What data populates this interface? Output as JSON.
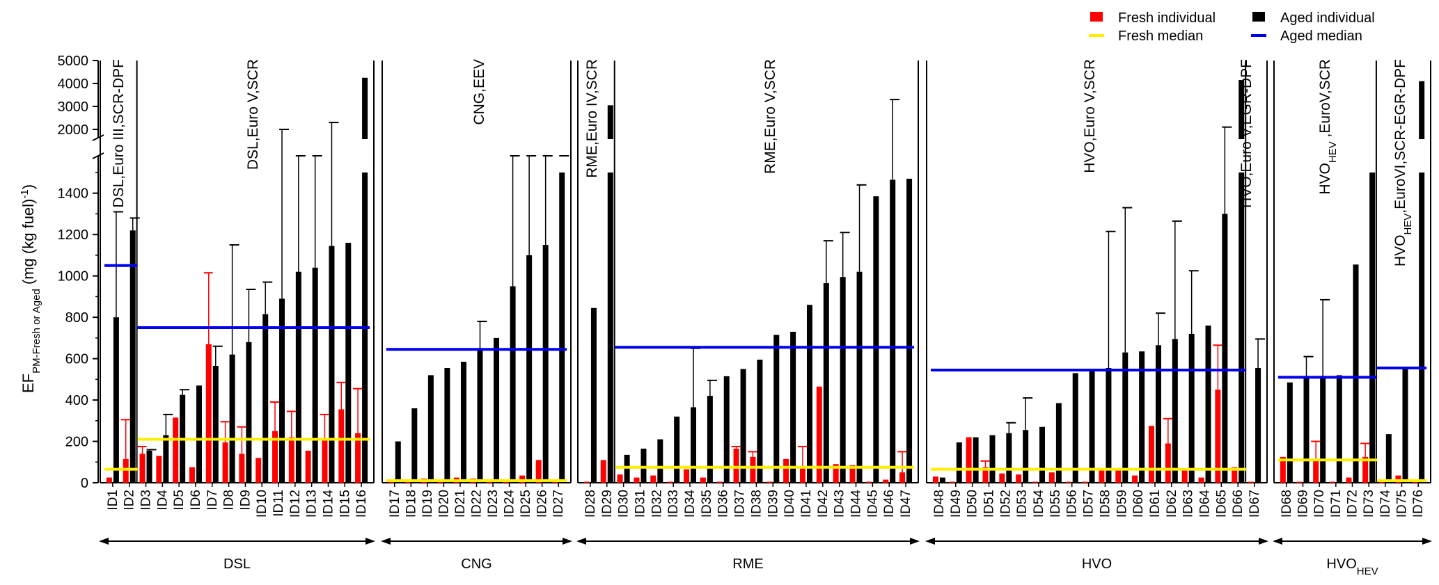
{
  "chart_data": {
    "type": "bar",
    "ylabel_main": "EF",
    "ylabel_sub": "PM-Fresh or Aged",
    "ylabel_unit": " (mg (kg fuel)",
    "ylabel_exp": "-1",
    "ylabel_close": ")",
    "y_axis": {
      "lower": {
        "min": 0,
        "max": 1500,
        "ticks": [
          0,
          200,
          400,
          600,
          800,
          1000,
          1200,
          1400
        ]
      },
      "upper": {
        "min": 2000,
        "max": 5000,
        "ticks": [
          2000,
          3000,
          4000,
          5000
        ]
      },
      "break": "axis break between 1500 and 1700"
    },
    "legend": [
      {
        "name": "Fresh individual",
        "kind": "bar",
        "color": "#ff0000"
      },
      {
        "name": "Aged individual",
        "kind": "bar",
        "color": "#000000"
      },
      {
        "name": "Fresh median",
        "kind": "line",
        "color": "#ffee00"
      },
      {
        "name": "Aged median",
        "kind": "line",
        "color": "#0000ee"
      }
    ],
    "groups": [
      {
        "name": "DSL",
        "sub": "",
        "ids": [
          1,
          16
        ]
      },
      {
        "name": "CNG",
        "sub": "",
        "ids": [
          17,
          27
        ]
      },
      {
        "name": "RME",
        "sub": "",
        "ids": [
          28,
          47
        ]
      },
      {
        "name": "HVO",
        "sub": "",
        "ids": [
          48,
          67
        ]
      },
      {
        "name": "HVO",
        "sub": "HEV",
        "ids": [
          68,
          76
        ]
      }
    ],
    "subgroups": [
      {
        "label": "DSL,Euro III,SCR-DPF",
        "ids": [
          1,
          2
        ],
        "aged_median": 1050,
        "fresh_median": 65
      },
      {
        "label": "DSL,Euro V,SCR",
        "ids": [
          3,
          16
        ],
        "aged_median": 750,
        "fresh_median": 210
      },
      {
        "label": "CNG,EEV",
        "ids": [
          17,
          27
        ],
        "aged_median": 645,
        "fresh_median": 10
      },
      {
        "label": "RME,Euro IV,SCR",
        "ids": [
          28,
          29
        ],
        "aged_median": null,
        "fresh_median": null
      },
      {
        "label": "RME,Euro V,SCR",
        "ids": [
          30,
          47
        ],
        "aged_median": 655,
        "fresh_median": 75
      },
      {
        "label": "HVO,Euro V,SCR",
        "ids": [
          48,
          66
        ],
        "aged_median": 545,
        "fresh_median": 65
      },
      {
        "label": "HVO,Euro V,EGR-DPF",
        "ids": [
          67,
          67
        ],
        "aged_median": null,
        "fresh_median": null
      },
      {
        "label": "HVO",
        "label_sub": "HEV",
        "label_rest": " ,EuroV,SCR",
        "ids": [
          68,
          73
        ],
        "aged_median": 510,
        "fresh_median": 110
      },
      {
        "label": "HVO",
        "label_sub": "HEV",
        "label_rest": ",EuroVI,SCR-EGR-DPF",
        "ids": [
          74,
          76
        ],
        "aged_median": 555,
        "fresh_median": 10
      }
    ],
    "bars": [
      {
        "id": "ID1",
        "fresh": 25,
        "aged": 800,
        "err_aged": 1310
      },
      {
        "id": "ID2",
        "fresh": 115,
        "aged": 1220,
        "err_fresh": 305,
        "err_aged": 1280
      },
      {
        "id": "ID3",
        "fresh": 140,
        "aged": 155,
        "err_fresh": 175,
        "err_aged": 160
      },
      {
        "id": "ID4",
        "fresh": 130,
        "aged": 230,
        "err_aged": 330
      },
      {
        "id": "ID5",
        "fresh": 315,
        "aged": 425,
        "err_aged": 450
      },
      {
        "id": "ID6",
        "fresh": 75,
        "aged": 470
      },
      {
        "id": "ID7",
        "fresh": 670,
        "aged": 565,
        "err_fresh": 1015,
        "err_aged": 660
      },
      {
        "id": "ID8",
        "fresh": 195,
        "aged": 620,
        "err_fresh": 295,
        "err_aged": 1150
      },
      {
        "id": "ID9",
        "fresh": 140,
        "aged": 680,
        "err_fresh": 270,
        "err_aged": 935
      },
      {
        "id": "ID10",
        "fresh": 120,
        "aged": 815,
        "err_aged": 970
      },
      {
        "id": "ID11",
        "fresh": 250,
        "aged": 890,
        "err_fresh": 390,
        "err_aged": 2000
      },
      {
        "id": "ID12",
        "fresh": 220,
        "aged": 1020,
        "err_fresh": 345,
        "err_aged": 1700
      },
      {
        "id": "ID13",
        "fresh": 155,
        "aged": 1040,
        "err_aged": 1700
      },
      {
        "id": "ID14",
        "fresh": 215,
        "aged": 1145,
        "err_fresh": 330,
        "err_aged": 2300
      },
      {
        "id": "ID15",
        "fresh": 355,
        "aged": 1160,
        "err_fresh": 485
      },
      {
        "id": "ID16",
        "fresh": 240,
        "aged": 4250,
        "err_fresh": 455
      },
      {
        "id": "ID17",
        "fresh": 10,
        "aged": 200
      },
      {
        "id": "ID18",
        "fresh": 5,
        "aged": 360
      },
      {
        "id": "ID19",
        "fresh": 20,
        "aged": 520
      },
      {
        "id": "ID20",
        "fresh": 5,
        "aged": 555
      },
      {
        "id": "ID21",
        "fresh": 25,
        "aged": 585
      },
      {
        "id": "ID22",
        "fresh": 20,
        "aged": 640,
        "err_aged": 780
      },
      {
        "id": "ID23",
        "fresh": 5,
        "aged": 700
      },
      {
        "id": "ID24",
        "fresh": 15,
        "aged": 950,
        "err_aged": 1900
      },
      {
        "id": "ID25",
        "fresh": 35,
        "aged": 1100,
        "err_aged": 1900
      },
      {
        "id": "ID26",
        "fresh": 110,
        "aged": 1150,
        "err_aged": 1700
      },
      {
        "id": "ID27",
        "fresh": 5,
        "aged": 1600,
        "err_aged": 1600
      },
      {
        "id": "ID28",
        "fresh": 5,
        "aged": 845
      },
      {
        "id": "ID29",
        "fresh": 110,
        "aged": 3050
      },
      {
        "id": "ID30",
        "fresh": 40,
        "aged": 135
      },
      {
        "id": "ID31",
        "fresh": 25,
        "aged": 165
      },
      {
        "id": "ID32",
        "fresh": 35,
        "aged": 210
      },
      {
        "id": "ID33",
        "fresh": 5,
        "aged": 320
      },
      {
        "id": "ID34",
        "fresh": 65,
        "aged": 365,
        "err_aged": 650
      },
      {
        "id": "ID35",
        "fresh": 25,
        "aged": 420,
        "err_aged": 495
      },
      {
        "id": "ID36",
        "fresh": 5,
        "aged": 515
      },
      {
        "id": "ID37",
        "fresh": 165,
        "aged": 550,
        "err_fresh": 175
      },
      {
        "id": "ID38",
        "fresh": 125,
        "aged": 595,
        "err_fresh": 150
      },
      {
        "id": "ID39",
        "fresh": 5,
        "aged": 715
      },
      {
        "id": "ID40",
        "fresh": 115,
        "aged": 730
      },
      {
        "id": "ID41",
        "fresh": 75,
        "aged": 860,
        "err_fresh": 175
      },
      {
        "id": "ID42",
        "fresh": 465,
        "aged": 965,
        "err_aged": 1170
      },
      {
        "id": "ID43",
        "fresh": 90,
        "aged": 995,
        "err_aged": 1210
      },
      {
        "id": "ID44",
        "fresh": 85,
        "aged": 1020,
        "err_aged": 1440
      },
      {
        "id": "ID45",
        "fresh": 5,
        "aged": 1385
      },
      {
        "id": "ID46",
        "fresh": 15,
        "aged": 1465,
        "err_aged": 3300
      },
      {
        "id": "ID47",
        "fresh": 50,
        "aged": 1470,
        "err_fresh": 150
      },
      {
        "id": "ID48",
        "fresh": 30,
        "aged": 25
      },
      {
        "id": "ID49",
        "fresh": 5,
        "aged": 195
      },
      {
        "id": "ID50",
        "fresh": 220,
        "aged": 220
      },
      {
        "id": "ID51",
        "fresh": 75,
        "aged": 230,
        "err_fresh": 105
      },
      {
        "id": "ID52",
        "fresh": 45,
        "aged": 240,
        "err_aged": 290
      },
      {
        "id": "ID53",
        "fresh": 40,
        "aged": 255,
        "err_aged": 410
      },
      {
        "id": "ID54",
        "fresh": 5,
        "aged": 270
      },
      {
        "id": "ID55",
        "fresh": 50,
        "aged": 385
      },
      {
        "id": "ID56",
        "fresh": 5,
        "aged": 530
      },
      {
        "id": "ID57",
        "fresh": 5,
        "aged": 540
      },
      {
        "id": "ID58",
        "fresh": 65,
        "aged": 555,
        "err_aged": 1215
      },
      {
        "id": "ID59",
        "fresh": 70,
        "aged": 630,
        "err_aged": 1330
      },
      {
        "id": "ID60",
        "fresh": 35,
        "aged": 635
      },
      {
        "id": "ID61",
        "fresh": 275,
        "aged": 665,
        "err_aged": 820
      },
      {
        "id": "ID62",
        "fresh": 190,
        "aged": 695,
        "err_fresh": 310,
        "err_aged": 1265
      },
      {
        "id": "ID63",
        "fresh": 65,
        "aged": 720,
        "err_aged": 1025
      },
      {
        "id": "ID64",
        "fresh": 25,
        "aged": 760
      },
      {
        "id": "ID65",
        "fresh": 450,
        "aged": 1300,
        "err_fresh": 665,
        "err_aged": 2100
      },
      {
        "id": "ID66",
        "fresh": 75,
        "aged": 4150
      },
      {
        "id": "ID67",
        "fresh": 5,
        "aged": 555,
        "err_aged": 695
      },
      {
        "id": "ID68",
        "fresh": 125,
        "aged": 485
      },
      {
        "id": "ID69",
        "fresh": 5,
        "aged": 505,
        "err_aged": 610
      },
      {
        "id": "ID70",
        "fresh": 110,
        "aged": 510,
        "err_fresh": 200,
        "err_aged": 885
      },
      {
        "id": "ID71",
        "fresh": 5,
        "aged": 520
      },
      {
        "id": "ID72",
        "fresh": 25,
        "aged": 1055
      },
      {
        "id": "ID73",
        "fresh": 125,
        "aged": 1950,
        "err_fresh": 190
      },
      {
        "id": "ID74",
        "fresh": 5,
        "aged": 235
      },
      {
        "id": "ID75",
        "fresh": 35,
        "aged": 555
      },
      {
        "id": "ID76",
        "fresh": 5,
        "aged": 4100
      }
    ]
  }
}
